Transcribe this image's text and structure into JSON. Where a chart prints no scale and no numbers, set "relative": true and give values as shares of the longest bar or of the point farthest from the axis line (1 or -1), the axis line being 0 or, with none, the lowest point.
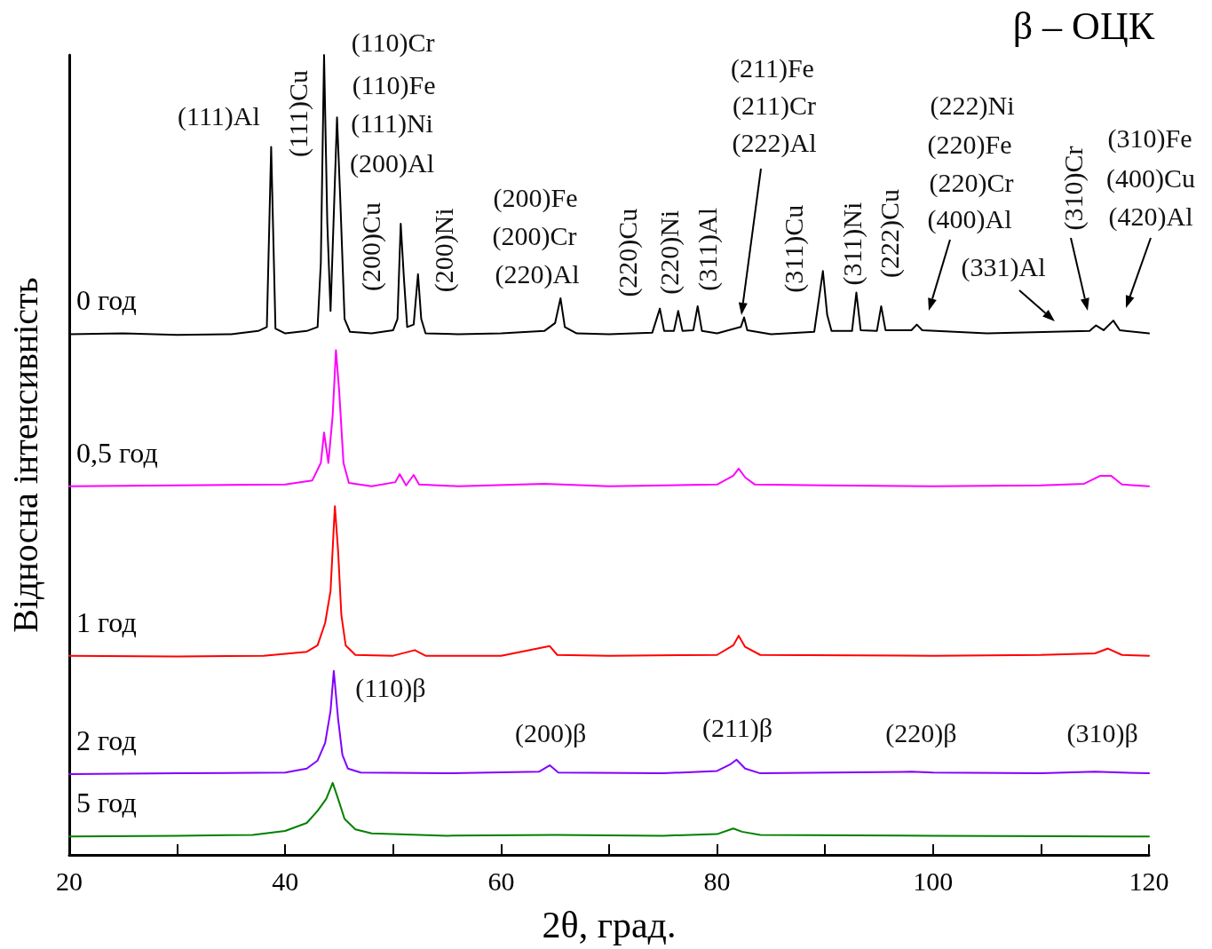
{
  "chart_data": {
    "type": "line",
    "relative": true,
    "title": "β – ОЦК",
    "xlabel": "2θ, град.",
    "ylabel": "Відносна інтенсивність",
    "xlim": [
      20,
      120
    ],
    "xticks": [
      20,
      {
        "value": 30,
        "label": null
      },
      40,
      {
        "value": 50,
        "label": null
      },
      60,
      {
        "value": 70,
        "label": null
      },
      80,
      {
        "value": 90,
        "label": null
      },
      100,
      {
        "value": 110,
        "label": null
      },
      120
    ],
    "grid": false,
    "legend": false,
    "marker": "none",
    "line_style": "solid",
    "series": [
      {
        "name": "0 год",
        "color": "#000000",
        "x": [
          20,
          25,
          30,
          35,
          37.5,
          38.3,
          38.7,
          39.1,
          40,
          42,
          43.0,
          43.3,
          43.6,
          43.9,
          44.2,
          44.5,
          44.8,
          45.1,
          45.5,
          46,
          48,
          50,
          50.4,
          50.7,
          51.0,
          51.3,
          51.9,
          52.3,
          52.6,
          53,
          56,
          60,
          64,
          65.0,
          65.5,
          65.9,
          67,
          70,
          74,
          74.7,
          75.1,
          76,
          76.4,
          76.8,
          77.8,
          78.2,
          78.6,
          80,
          82.2,
          82.5,
          82.8,
          85,
          89,
          89.8,
          90.2,
          90.6,
          92.5,
          92.9,
          93.3,
          94.8,
          95.2,
          95.6,
          98,
          98.5,
          99,
          105,
          111,
          114.5,
          115.1,
          115.8,
          116.7,
          117.3,
          120
        ],
        "values": [
          0.651,
          0.652,
          0.65,
          0.651,
          0.655,
          0.66,
          0.885,
          0.658,
          0.652,
          0.655,
          0.66,
          0.74,
          1.0,
          0.79,
          0.68,
          0.8,
          0.922,
          0.82,
          0.67,
          0.654,
          0.652,
          0.656,
          0.67,
          0.789,
          0.72,
          0.66,
          0.663,
          0.726,
          0.67,
          0.652,
          0.651,
          0.652,
          0.655,
          0.665,
          0.696,
          0.66,
          0.652,
          0.651,
          0.653,
          0.683,
          0.655,
          0.655,
          0.68,
          0.655,
          0.656,
          0.686,
          0.655,
          0.652,
          0.66,
          0.672,
          0.656,
          0.651,
          0.654,
          0.73,
          0.675,
          0.655,
          0.655,
          0.703,
          0.656,
          0.655,
          0.686,
          0.656,
          0.656,
          0.663,
          0.656,
          0.652,
          0.654,
          0.655,
          0.662,
          0.656,
          0.668,
          0.656,
          0.652
        ]
      },
      {
        "name": "0,5 год",
        "color": "#ff00ff",
        "x": [
          20,
          30,
          40,
          42.5,
          43.3,
          43.6,
          44.0,
          44.4,
          44.7,
          45.0,
          45.4,
          45.9,
          48,
          50.2,
          50.6,
          51.2,
          51.9,
          52.4,
          56,
          64,
          70,
          80,
          81.5,
          82.0,
          82.6,
          83.5,
          90,
          100,
          110,
          114,
          115.5,
          116.5,
          117.5,
          120
        ],
        "values": [
          0.461,
          0.462,
          0.463,
          0.468,
          0.49,
          0.528,
          0.49,
          0.55,
          0.631,
          0.58,
          0.49,
          0.465,
          0.461,
          0.466,
          0.476,
          0.462,
          0.475,
          0.463,
          0.461,
          0.464,
          0.461,
          0.463,
          0.474,
          0.483,
          0.472,
          0.463,
          0.462,
          0.461,
          0.462,
          0.464,
          0.474,
          0.474,
          0.463,
          0.461
        ]
      },
      {
        "name": "1 год",
        "color": "#ff0000",
        "x": [
          20,
          30,
          38,
          42,
          43,
          43.7,
          44.2,
          44.6,
          44.9,
          45.2,
          45.6,
          46.5,
          50,
          52,
          53,
          60,
          64.5,
          65.2,
          70,
          80,
          81.5,
          82.0,
          82.6,
          84,
          100,
          110,
          115,
          116.2,
          117.5,
          120
        ],
        "values": [
          0.249,
          0.248,
          0.249,
          0.254,
          0.262,
          0.29,
          0.33,
          0.436,
          0.38,
          0.3,
          0.262,
          0.25,
          0.249,
          0.256,
          0.249,
          0.249,
          0.261,
          0.25,
          0.249,
          0.25,
          0.262,
          0.274,
          0.26,
          0.25,
          0.249,
          0.25,
          0.252,
          0.258,
          0.25,
          0.249
        ]
      },
      {
        "name": "2 год",
        "color": "#8000ff",
        "x": [
          20,
          30,
          40,
          42,
          43,
          43.7,
          44.2,
          44.5,
          44.9,
          45.3,
          45.8,
          47,
          55,
          63.5,
          64.5,
          65.3,
          75,
          80,
          81.2,
          81.8,
          82.6,
          84,
          98,
          100,
          110,
          115,
          120
        ],
        "values": [
          0.101,
          0.102,
          0.103,
          0.108,
          0.118,
          0.14,
          0.18,
          0.23,
          0.17,
          0.125,
          0.108,
          0.103,
          0.102,
          0.104,
          0.112,
          0.103,
          0.102,
          0.105,
          0.113,
          0.119,
          0.108,
          0.102,
          0.104,
          0.103,
          0.102,
          0.104,
          0.102
        ]
      },
      {
        "name": "5 год",
        "color": "#008000",
        "x": [
          20,
          30,
          37,
          40,
          42,
          43,
          43.8,
          44.4,
          44.9,
          45.5,
          46.5,
          48,
          55,
          65,
          75,
          80,
          81.5,
          82.3,
          84,
          100,
          120
        ],
        "values": [
          0.023,
          0.024,
          0.025,
          0.03,
          0.04,
          0.055,
          0.07,
          0.09,
          0.07,
          0.045,
          0.032,
          0.027,
          0.024,
          0.025,
          0.024,
          0.026,
          0.033,
          0.029,
          0.025,
          0.024,
          0.023
        ]
      }
    ],
    "annotations": [
      {
        "text": "(111)Al",
        "x": 38.7,
        "y": 0.885
      },
      {
        "text": "(111)Cu",
        "x": 43.6,
        "y": 1.0
      },
      {
        "text": "(110)Cr",
        "x": 44.8,
        "y": 0.922
      },
      {
        "text": "(110)Fe",
        "x": 44.8,
        "y": 0.922
      },
      {
        "text": "(111)Ni",
        "x": 44.8,
        "y": 0.922
      },
      {
        "text": "(200)Al",
        "x": 44.8,
        "y": 0.922
      },
      {
        "text": "(200)Cu",
        "x": 50.7,
        "y": 0.789
      },
      {
        "text": "(200)Ni",
        "x": 52.3,
        "y": 0.726
      },
      "(200)Fe",
      "(200)Cr",
      "(220)Al",
      {
        "text": "(220)Cu",
        "x": 74.7,
        "y": 0.683
      },
      {
        "text": "(220)Ni",
        "x": 76.4,
        "y": 0.68
      },
      {
        "text": "(311)Al",
        "x": 78.2,
        "y": 0.686
      },
      "(211)Fe",
      "(211)Cr",
      "(222)Al",
      {
        "text": "(311)Cu",
        "x": 89.8,
        "y": 0.73
      },
      {
        "text": "(311)Ni",
        "x": 92.9,
        "y": 0.703
      },
      {
        "text": "(222)Cu",
        "x": 95.2,
        "y": 0.686
      },
      "(222)Ni",
      "(220)Fe",
      "(220)Cr",
      "(400)Al",
      "(331)Al",
      "(310)Cr",
      "(310)Fe",
      "(400)Cu",
      "(420)Al",
      {
        "text": "(110)β",
        "x": 44.5,
        "y": 0.23
      },
      {
        "text": "(200)β",
        "x": 64.5,
        "y": 0.112
      },
      {
        "text": "(211)β",
        "x": 81.8,
        "y": 0.119
      },
      {
        "text": "(220)β",
        "x": 98.9,
        "y": 0.104
      },
      {
        "text": "(310)β",
        "x": 115.7,
        "y": 0.104
      }
    ]
  }
}
